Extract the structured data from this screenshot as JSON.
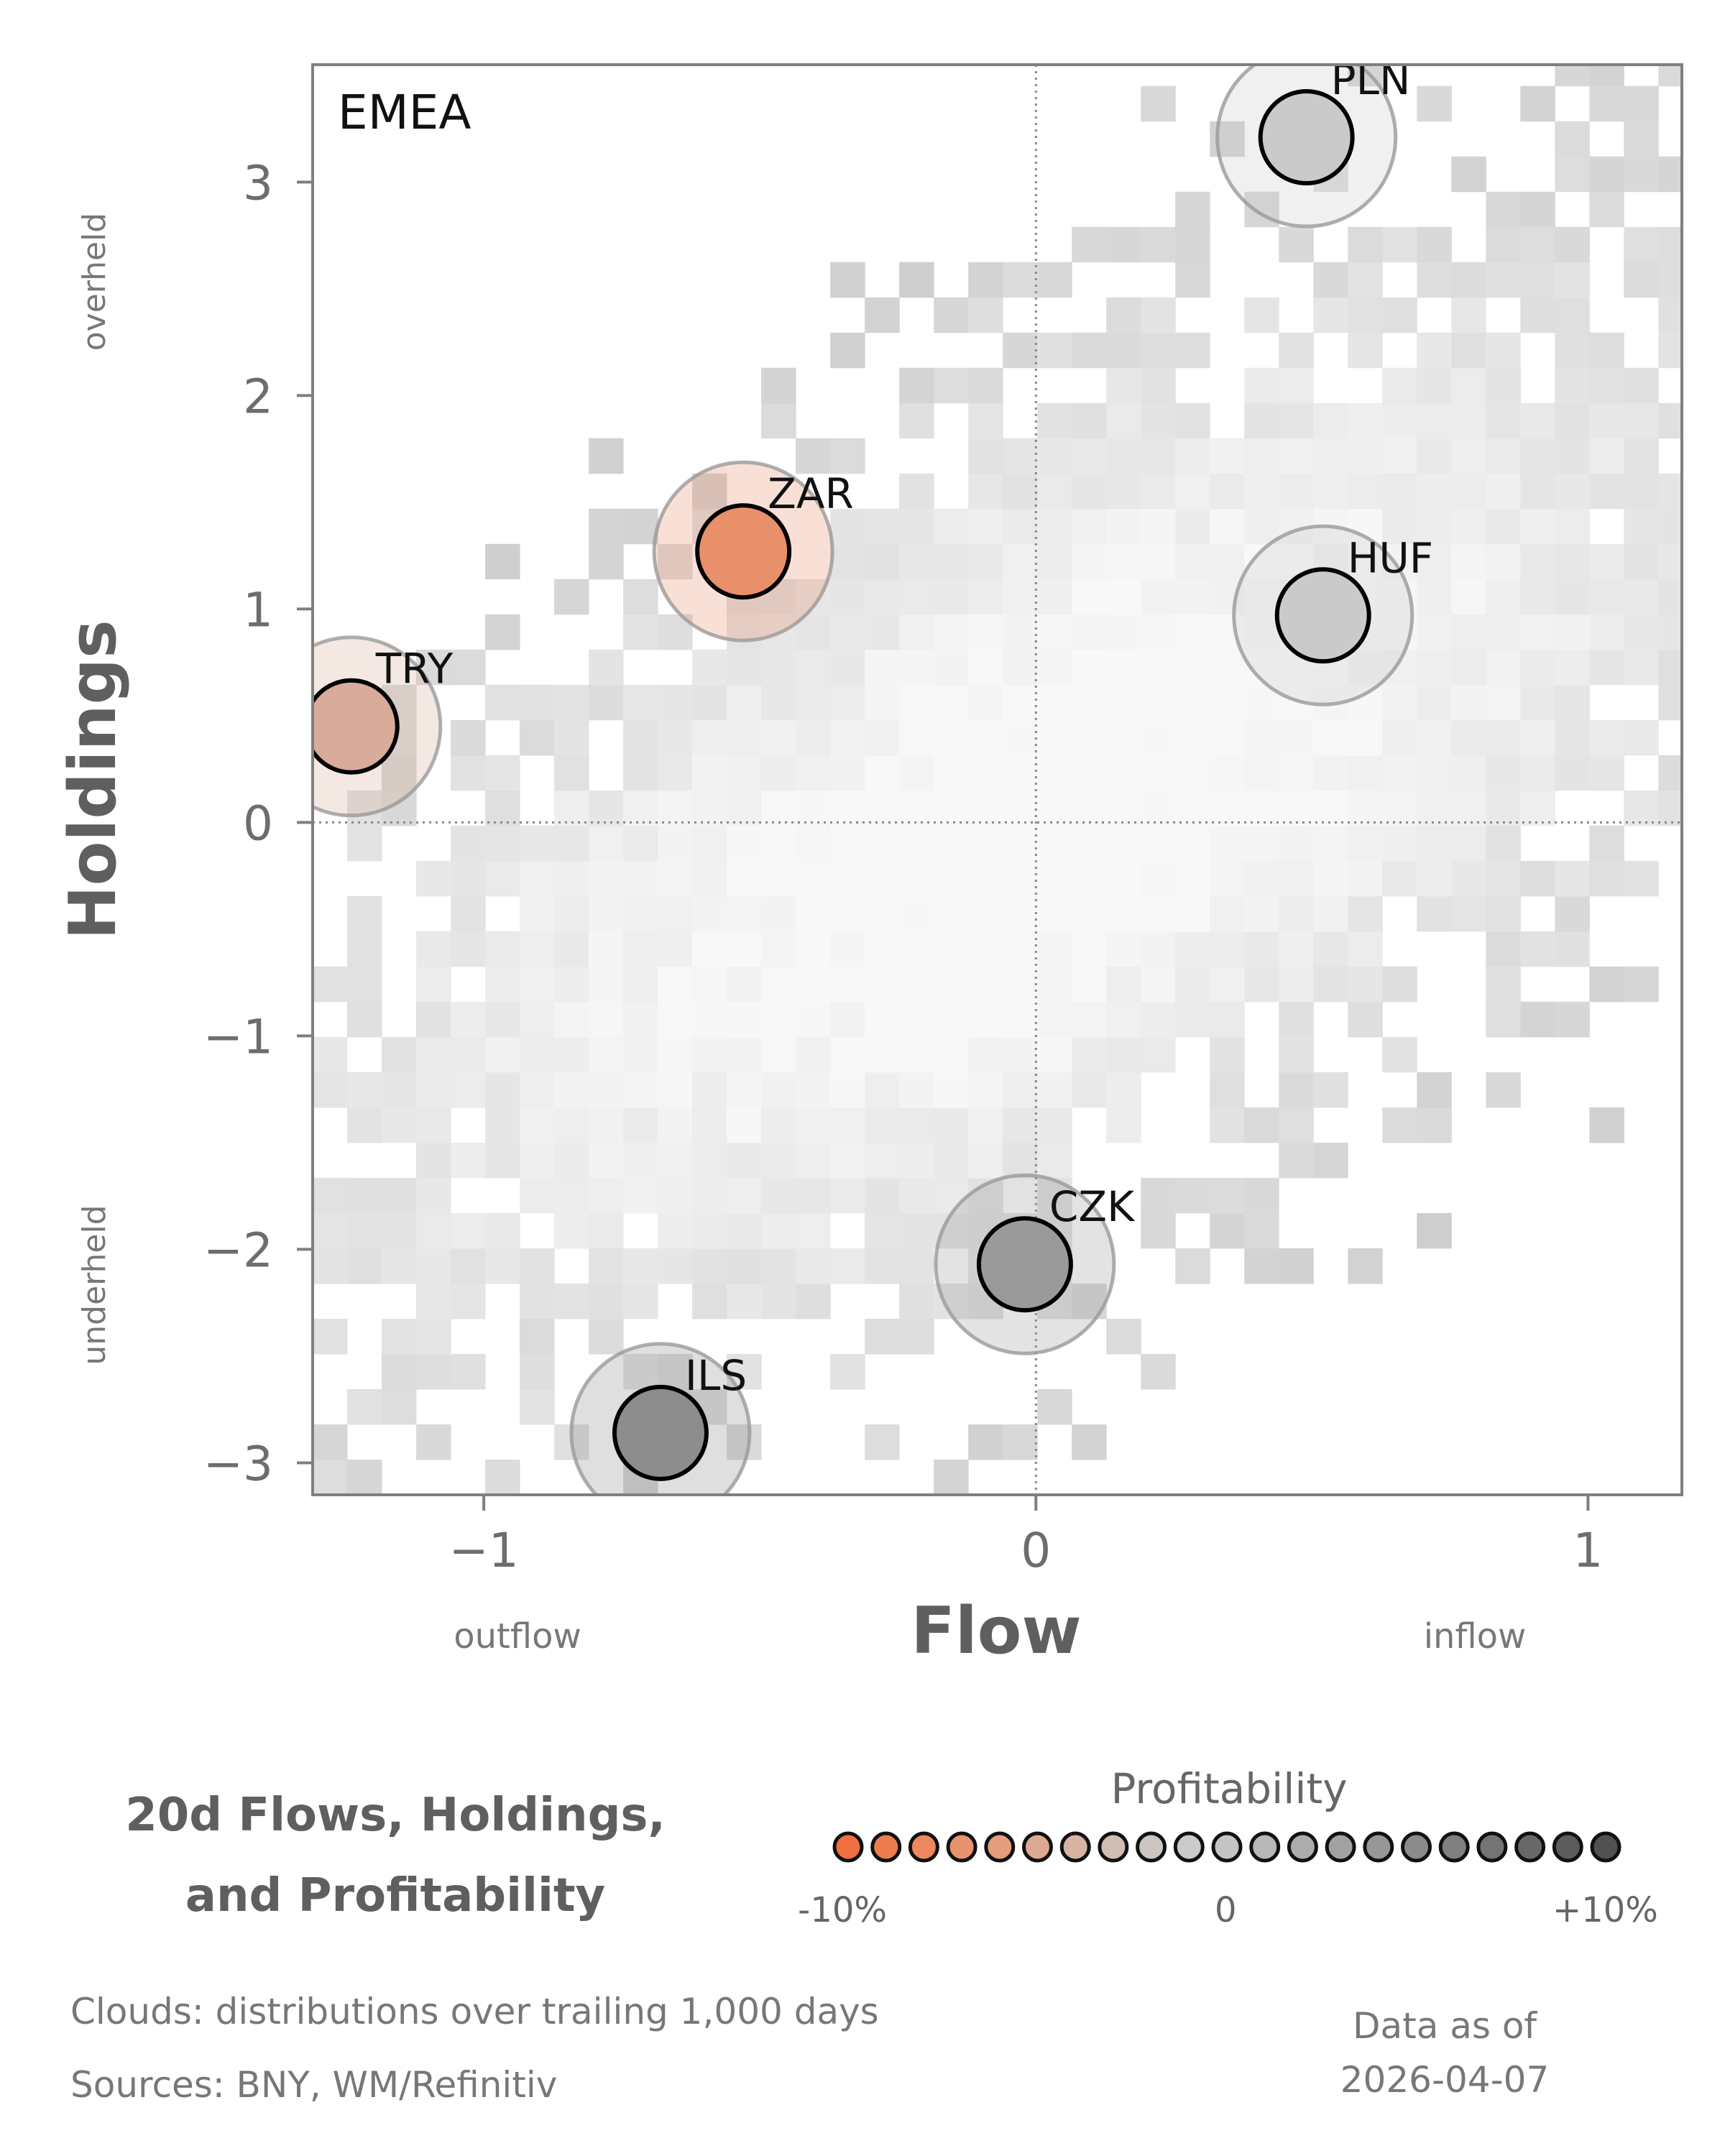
{
  "chart_data": {
    "type": "scatter",
    "panel_label": "EMEA",
    "xlabel": "Flow",
    "ylabel": "Holdings",
    "x_annotations": {
      "left": "outflow",
      "right": "inflow"
    },
    "y_annotations": {
      "top": "overheld",
      "bottom": "underheld"
    },
    "xlim": [
      -1.31,
      1.17
    ],
    "ylim": [
      -3.15,
      3.55
    ],
    "x_ticks": [
      -1,
      0,
      1
    ],
    "x_tick_labels": [
      "−1",
      "0",
      "1"
    ],
    "y_ticks": [
      -3,
      -2,
      -1,
      0,
      1,
      2,
      3
    ],
    "y_tick_labels": [
      "−3",
      "−2",
      "−1",
      "0",
      "1",
      "2",
      "3"
    ],
    "reference_lines": {
      "x": 0,
      "y": 0,
      "style": "dotted"
    },
    "background": "2D histogram cloud of trailing distribution (grey)",
    "points": [
      {
        "label": "PLN",
        "x": 0.49,
        "y": 3.21,
        "profitability": 1,
        "color": "#c9cac9"
      },
      {
        "label": "HUF",
        "x": 0.52,
        "y": 0.97,
        "profitability": 1,
        "color": "#c9cac9"
      },
      {
        "label": "ZAR",
        "x": -0.53,
        "y": 1.27,
        "profitability": -7,
        "color": "#e8906a"
      },
      {
        "label": "TRY",
        "x": -1.24,
        "y": 0.45,
        "profitability": -3,
        "color": "#d8ab9a"
      },
      {
        "label": "CZK",
        "x": -0.02,
        "y": -2.07,
        "profitability": 7,
        "color": "#9a9a9b"
      },
      {
        "label": "ILS",
        "x": -0.68,
        "y": -2.86,
        "profitability": 8,
        "color": "#8d8d8e"
      }
    ],
    "legend": {
      "title": "Profitability",
      "min_label": "-10%",
      "mid_label": "0",
      "max_label": "+10%",
      "swatches": [
        "#f0703f",
        "#ee7c4f",
        "#ec8760",
        "#e8936f",
        "#e39e80",
        "#dca992",
        "#d6b3a3",
        "#d0bcb3",
        "#cdc5c1",
        "#cbcbca",
        "#c4c4c4",
        "#b8b8b9",
        "#adadad",
        "#a2a2a2",
        "#979798",
        "#8b8b8c",
        "#808080",
        "#747475",
        "#686869",
        "#5c5c5d",
        "#515152"
      ]
    }
  },
  "footer": {
    "title_line1": "20d Flows, Holdings,",
    "title_line2": "and Profitability",
    "note_clouds": "Clouds:  distributions over trailing 1,000 days",
    "note_sources": "Sources:  BNY, WM/Refinitiv",
    "asof_line1": "Data as of",
    "asof_line2": "2026-04-07"
  }
}
